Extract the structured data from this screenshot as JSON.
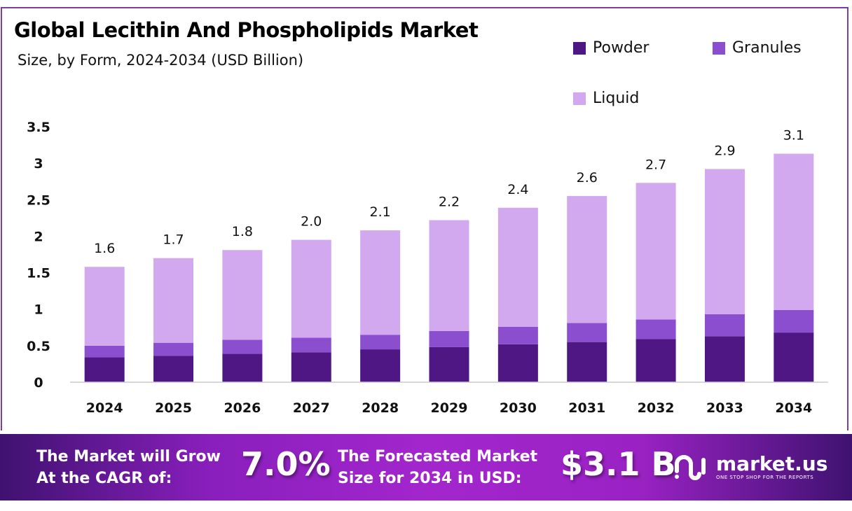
{
  "chart_data": {
    "type": "bar",
    "stacked": true,
    "title": "Global Lecithin And Phospholipids Market",
    "subtitle": "Size, by Form, 2024-2034 (USD Billion)",
    "categories": [
      "2024",
      "2025",
      "2026",
      "2027",
      "2028",
      "2029",
      "2030",
      "2031",
      "2032",
      "2033",
      "2034"
    ],
    "series": [
      {
        "name": "Powder",
        "color": "#4e1784",
        "values": [
          0.34,
          0.36,
          0.39,
          0.41,
          0.45,
          0.48,
          0.52,
          0.55,
          0.59,
          0.63,
          0.68
        ]
      },
      {
        "name": "Granules",
        "color": "#8b4ecf",
        "values": [
          0.16,
          0.18,
          0.19,
          0.2,
          0.2,
          0.22,
          0.24,
          0.26,
          0.27,
          0.3,
          0.31
        ]
      },
      {
        "name": "Liquid",
        "color": "#d2a8ee",
        "values": [
          1.08,
          1.16,
          1.23,
          1.34,
          1.43,
          1.52,
          1.63,
          1.74,
          1.87,
          1.99,
          2.14
        ]
      }
    ],
    "totals_labels": [
      "1.6",
      "1.7",
      "1.8",
      "2.0",
      "2.1",
      "2.2",
      "2.4",
      "2.6",
      "2.7",
      "2.9",
      "3.1"
    ],
    "yticks": [
      "0",
      "0.5",
      "1",
      "1.5",
      "2",
      "2.5",
      "3",
      "3.5"
    ],
    "ylim": [
      0,
      3.5
    ],
    "grid": false,
    "legend_placement": "top-right"
  },
  "banner": {
    "cagr_text_1": "The Market will Grow",
    "cagr_text_2": "At the CAGR of:",
    "cagr_value": "7.0%",
    "forecast_text_1": "The Forecasted Market",
    "forecast_text_2": "Size for 2034 in USD:",
    "forecast_value": "$3.1 B",
    "logo_name": "market.us",
    "logo_tagline": "ONE STOP SHOP FOR THE REPORTS"
  }
}
